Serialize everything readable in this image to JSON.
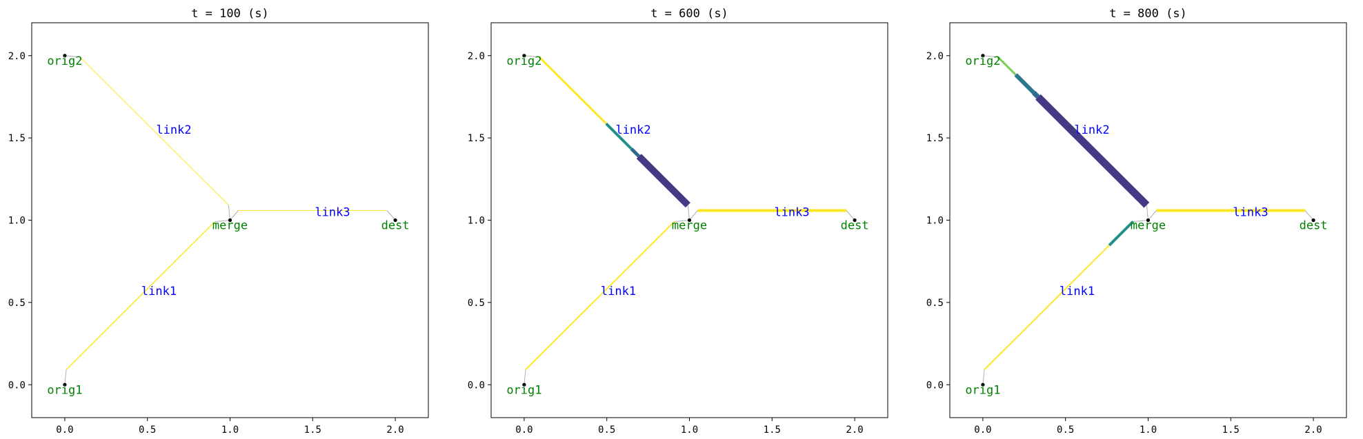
{
  "figure": {
    "panels": [
      {
        "title": "t =       100 (s)",
        "segments": {
          "link1": [
            {
              "from": 0.0,
              "to": 1.0,
              "color": "#fde725",
              "width": 1.5
            }
          ],
          "link2": [
            {
              "from": 0.0,
              "to": 1.0,
              "color": "#fde725",
              "width": 1.0
            }
          ],
          "link3": [
            {
              "from": 0.0,
              "to": 1.0,
              "color": "#fde725",
              "width": 1.0
            }
          ]
        }
      },
      {
        "title": "t =       600 (s)",
        "segments": {
          "link1": [
            {
              "from": 0.0,
              "to": 1.0,
              "color": "#fde725",
              "width": 2
            }
          ],
          "link2": [
            {
              "from": 0.0,
              "to": 0.45,
              "color": "#fde725",
              "width": 3
            },
            {
              "from": 0.45,
              "to": 0.62,
              "color": "#21918c",
              "width": 4
            },
            {
              "from": 0.62,
              "to": 0.67,
              "color": "#31688e",
              "width": 5
            },
            {
              "from": 0.67,
              "to": 1.0,
              "color": "#443983",
              "width": 10
            }
          ],
          "link3": [
            {
              "from": 0.0,
              "to": 1.0,
              "color": "#fde725",
              "width": 4
            }
          ]
        }
      },
      {
        "title": "t =       800 (s)",
        "segments": {
          "link1": [
            {
              "from": 0.0,
              "to": 0.84,
              "color": "#fde725",
              "width": 2
            },
            {
              "from": 0.84,
              "to": 1.0,
              "color": "#21918c",
              "width": 4
            }
          ],
          "link2": [
            {
              "from": 0.0,
              "to": 0.12,
              "color": "#7ad151",
              "width": 3
            },
            {
              "from": 0.12,
              "to": 0.24,
              "color": "#2a788e",
              "width": 6
            },
            {
              "from": 0.24,
              "to": 0.27,
              "color": "#31688e",
              "width": 7
            },
            {
              "from": 0.27,
              "to": 1.0,
              "color": "#443983",
              "width": 11
            }
          ],
          "link3": [
            {
              "from": 0.0,
              "to": 1.0,
              "color": "#fde725",
              "width": 4
            }
          ]
        }
      }
    ],
    "nodes": [
      {
        "id": "orig1",
        "label": "orig1",
        "x": 0.0,
        "y": 0.0
      },
      {
        "id": "orig2",
        "label": "orig2",
        "x": 0.0,
        "y": 2.0
      },
      {
        "id": "merge",
        "label": "merge",
        "x": 1.0,
        "y": 1.0
      },
      {
        "id": "dest",
        "label": "dest",
        "x": 2.0,
        "y": 1.0
      }
    ],
    "links": [
      {
        "id": "link1",
        "label": "link1",
        "from": "orig1",
        "to": "merge",
        "label_x": 0.57,
        "label_y": 0.57
      },
      {
        "id": "link2",
        "label": "link2",
        "from": "orig2",
        "to": "merge",
        "label_x": 0.66,
        "label_y": 1.55
      },
      {
        "id": "link3",
        "label": "link3",
        "from": "merge",
        "to": "dest",
        "label_x": 1.62,
        "label_y": 1.05
      }
    ],
    "x_ticks": [
      "0.0",
      "0.5",
      "1.0",
      "1.5",
      "2.0"
    ],
    "y_ticks": [
      "0.0",
      "0.5",
      "1.0",
      "1.5",
      "2.0"
    ],
    "colors": {
      "node_label": "#008000",
      "link_label": "#0000ff",
      "connector": "#b0b0b0"
    }
  }
}
